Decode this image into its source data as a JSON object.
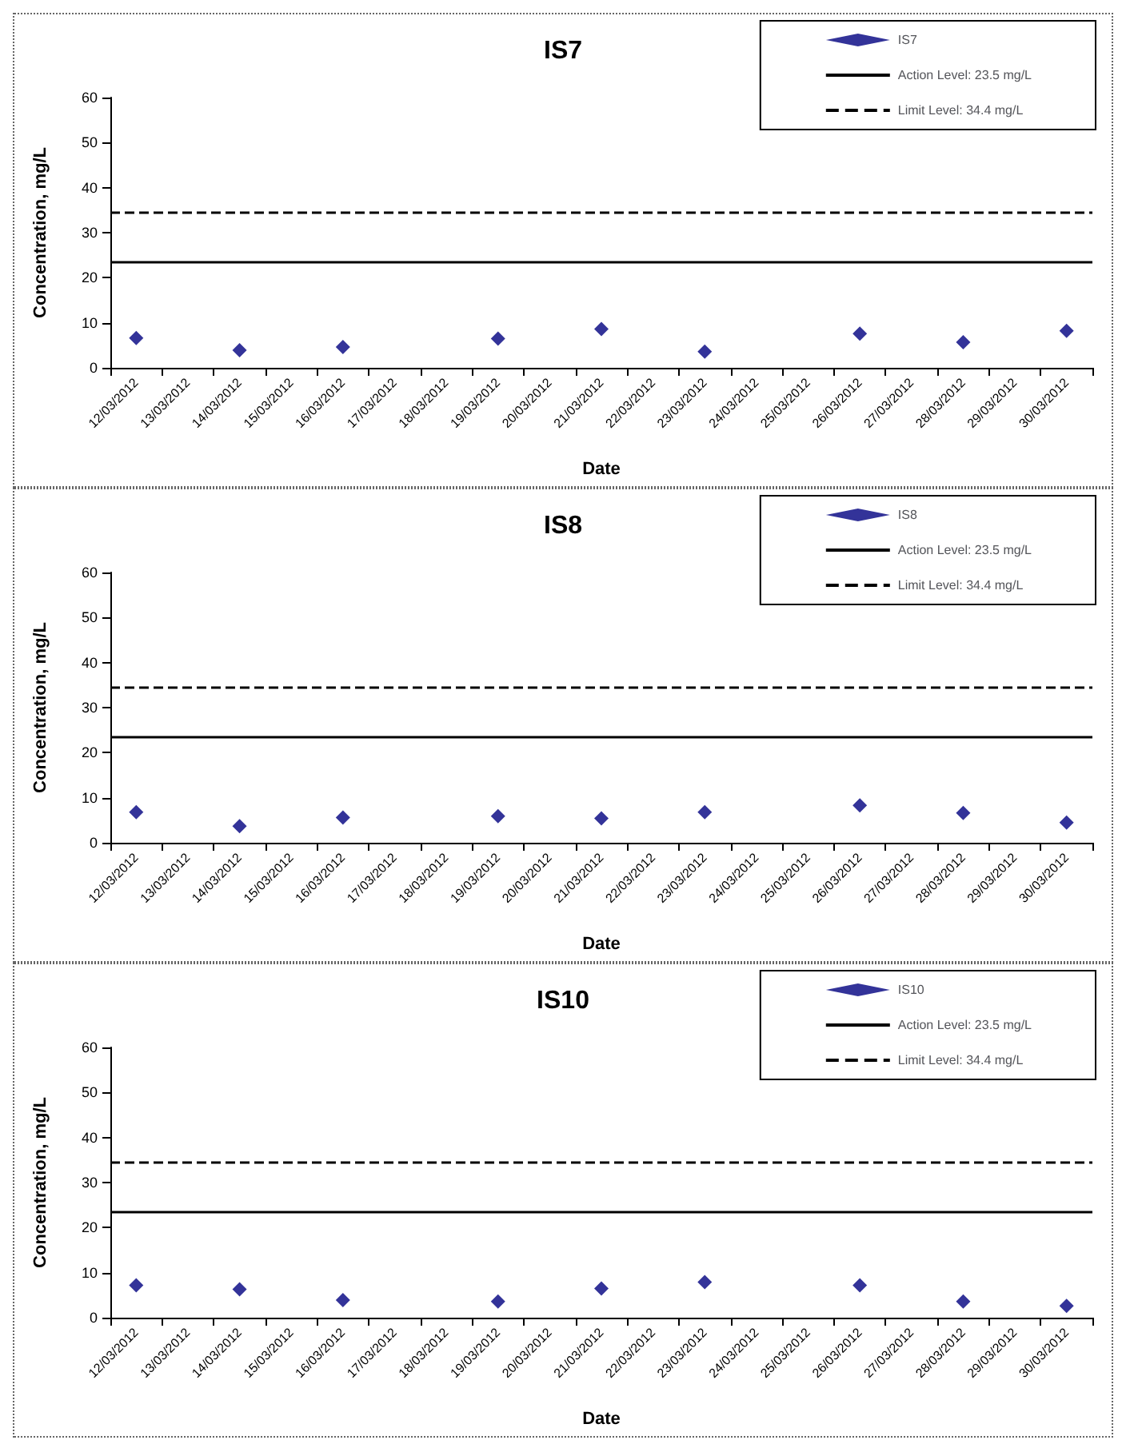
{
  "chart_data": [
    {
      "type": "scatter",
      "title": "IS7",
      "xlabel": "Date",
      "ylabel": "Concentration, mg/L",
      "categories": [
        "12/03/2012",
        "13/03/2012",
        "14/03/2012",
        "15/03/2012",
        "16/03/2012",
        "17/03/2012",
        "18/03/2012",
        "19/03/2012",
        "20/03/2012",
        "21/03/2012",
        "22/03/2012",
        "23/03/2012",
        "24/03/2012",
        "25/03/2012",
        "26/03/2012",
        "27/03/2012",
        "28/03/2012",
        "29/03/2012",
        "30/03/2012"
      ],
      "series": [
        {
          "name": "IS7",
          "color": "#000080",
          "values": [
            6.6,
            null,
            3.9,
            null,
            4.6,
            null,
            null,
            6.5,
            null,
            8.6,
            null,
            3.6,
            null,
            null,
            7.6,
            null,
            5.7,
            null,
            8.2
          ]
        }
      ],
      "ylim": [
        0,
        60
      ],
      "yticks": [
        0,
        10,
        20,
        30,
        40,
        50,
        60
      ],
      "grid": false,
      "legend": "top right",
      "marker": "diamond",
      "ref_lines": [
        {
          "axis": "y",
          "value": 23.5,
          "label": "Action Level: 23.5 mg/L",
          "color": "#000000",
          "line_style": "solid"
        },
        {
          "axis": "y",
          "value": 34.4,
          "label": "Limit Level: 34.4 mg/L",
          "color": "#000000",
          "line_style": "dashed"
        }
      ]
    },
    {
      "type": "scatter",
      "title": "IS8",
      "xlabel": "Date",
      "ylabel": "Concentration, mg/L",
      "categories": [
        "12/03/2012",
        "13/03/2012",
        "14/03/2012",
        "15/03/2012",
        "16/03/2012",
        "17/03/2012",
        "18/03/2012",
        "19/03/2012",
        "20/03/2012",
        "21/03/2012",
        "22/03/2012",
        "23/03/2012",
        "24/03/2012",
        "25/03/2012",
        "26/03/2012",
        "27/03/2012",
        "28/03/2012",
        "29/03/2012",
        "30/03/2012"
      ],
      "series": [
        {
          "name": "IS8",
          "color": "#000080",
          "values": [
            6.8,
            null,
            3.7,
            null,
            5.6,
            null,
            null,
            5.9,
            null,
            5.4,
            null,
            6.8,
            null,
            null,
            8.3,
            null,
            6.6,
            null,
            4.5
          ]
        }
      ],
      "ylim": [
        0,
        60
      ],
      "yticks": [
        0,
        10,
        20,
        30,
        40,
        50,
        60
      ],
      "grid": false,
      "legend": "top right",
      "marker": "diamond",
      "ref_lines": [
        {
          "axis": "y",
          "value": 23.5,
          "label": "Action Level: 23.5 mg/L",
          "color": "#000000",
          "line_style": "solid"
        },
        {
          "axis": "y",
          "value": 34.4,
          "label": "Limit Level: 34.4 mg/L",
          "color": "#000000",
          "line_style": "dashed"
        }
      ]
    },
    {
      "type": "scatter",
      "title": "IS10",
      "xlabel": "Date",
      "ylabel": "Concentration, mg/L",
      "categories": [
        "12/03/2012",
        "13/03/2012",
        "14/03/2012",
        "15/03/2012",
        "16/03/2012",
        "17/03/2012",
        "18/03/2012",
        "19/03/2012",
        "20/03/2012",
        "21/03/2012",
        "22/03/2012",
        "23/03/2012",
        "24/03/2012",
        "25/03/2012",
        "26/03/2012",
        "27/03/2012",
        "28/03/2012",
        "29/03/2012",
        "30/03/2012"
      ],
      "series": [
        {
          "name": "IS10",
          "color": "#000080",
          "values": [
            7.2,
            null,
            6.3,
            null,
            3.9,
            null,
            null,
            3.6,
            null,
            6.5,
            null,
            7.9,
            null,
            null,
            7.2,
            null,
            3.6,
            null,
            2.6
          ]
        }
      ],
      "ylim": [
        0,
        60
      ],
      "yticks": [
        0,
        10,
        20,
        30,
        40,
        50,
        60
      ],
      "grid": false,
      "legend": "top right",
      "marker": "diamond",
      "ref_lines": [
        {
          "axis": "y",
          "value": 23.5,
          "label": "Action Level: 23.5 mg/L",
          "color": "#000000",
          "line_style": "solid"
        },
        {
          "axis": "y",
          "value": 34.4,
          "label": "Limit Level: 34.4 mg/L",
          "color": "#000000",
          "line_style": "dashed"
        }
      ]
    }
  ]
}
